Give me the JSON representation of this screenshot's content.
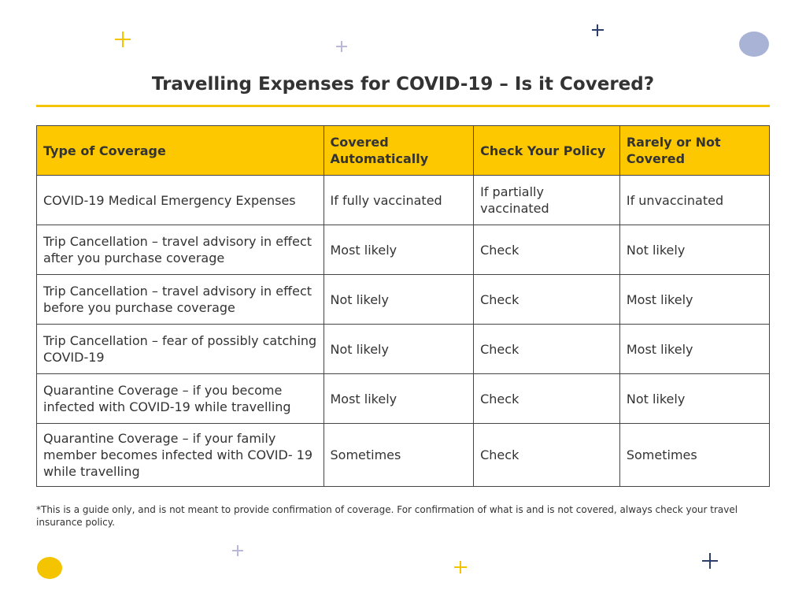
{
  "title": "Travelling Expenses for COVID-19 – Is it Covered?",
  "table": {
    "headers": [
      "Type of Coverage",
      "Covered Automatically",
      "Check Your Policy",
      "Rarely or Not Covered"
    ],
    "rows": [
      [
        "COVID-19 Medical Emergency Expenses",
        "If fully vaccinated",
        "If partially vaccinated",
        "If unvaccinated"
      ],
      [
        "Trip Cancellation – travel advisory in effect after you purchase coverage",
        "Most likely",
        "Check",
        "Not likely"
      ],
      [
        "Trip Cancellation – travel advisory in effect before you purchase coverage",
        "Not likely",
        "Check",
        "Most likely"
      ],
      [
        "Trip Cancellation – fear of possibly catching COVID-19",
        "Not likely",
        "Check",
        "Most likely"
      ],
      [
        "Quarantine Coverage – if you become infected with COVID-19 while travelling",
        "Most likely",
        "Check",
        "Not likely"
      ],
      [
        "Quarantine Coverage – if your family member becomes infected with COVID- 19 while travelling",
        "Sometimes",
        "Check",
        "Sometimes"
      ]
    ]
  },
  "footnote": "*This is a guide only, and is not meant to provide confirmation of coverage. For confirmation of what is and is not covered, always check your travel insurance policy."
}
